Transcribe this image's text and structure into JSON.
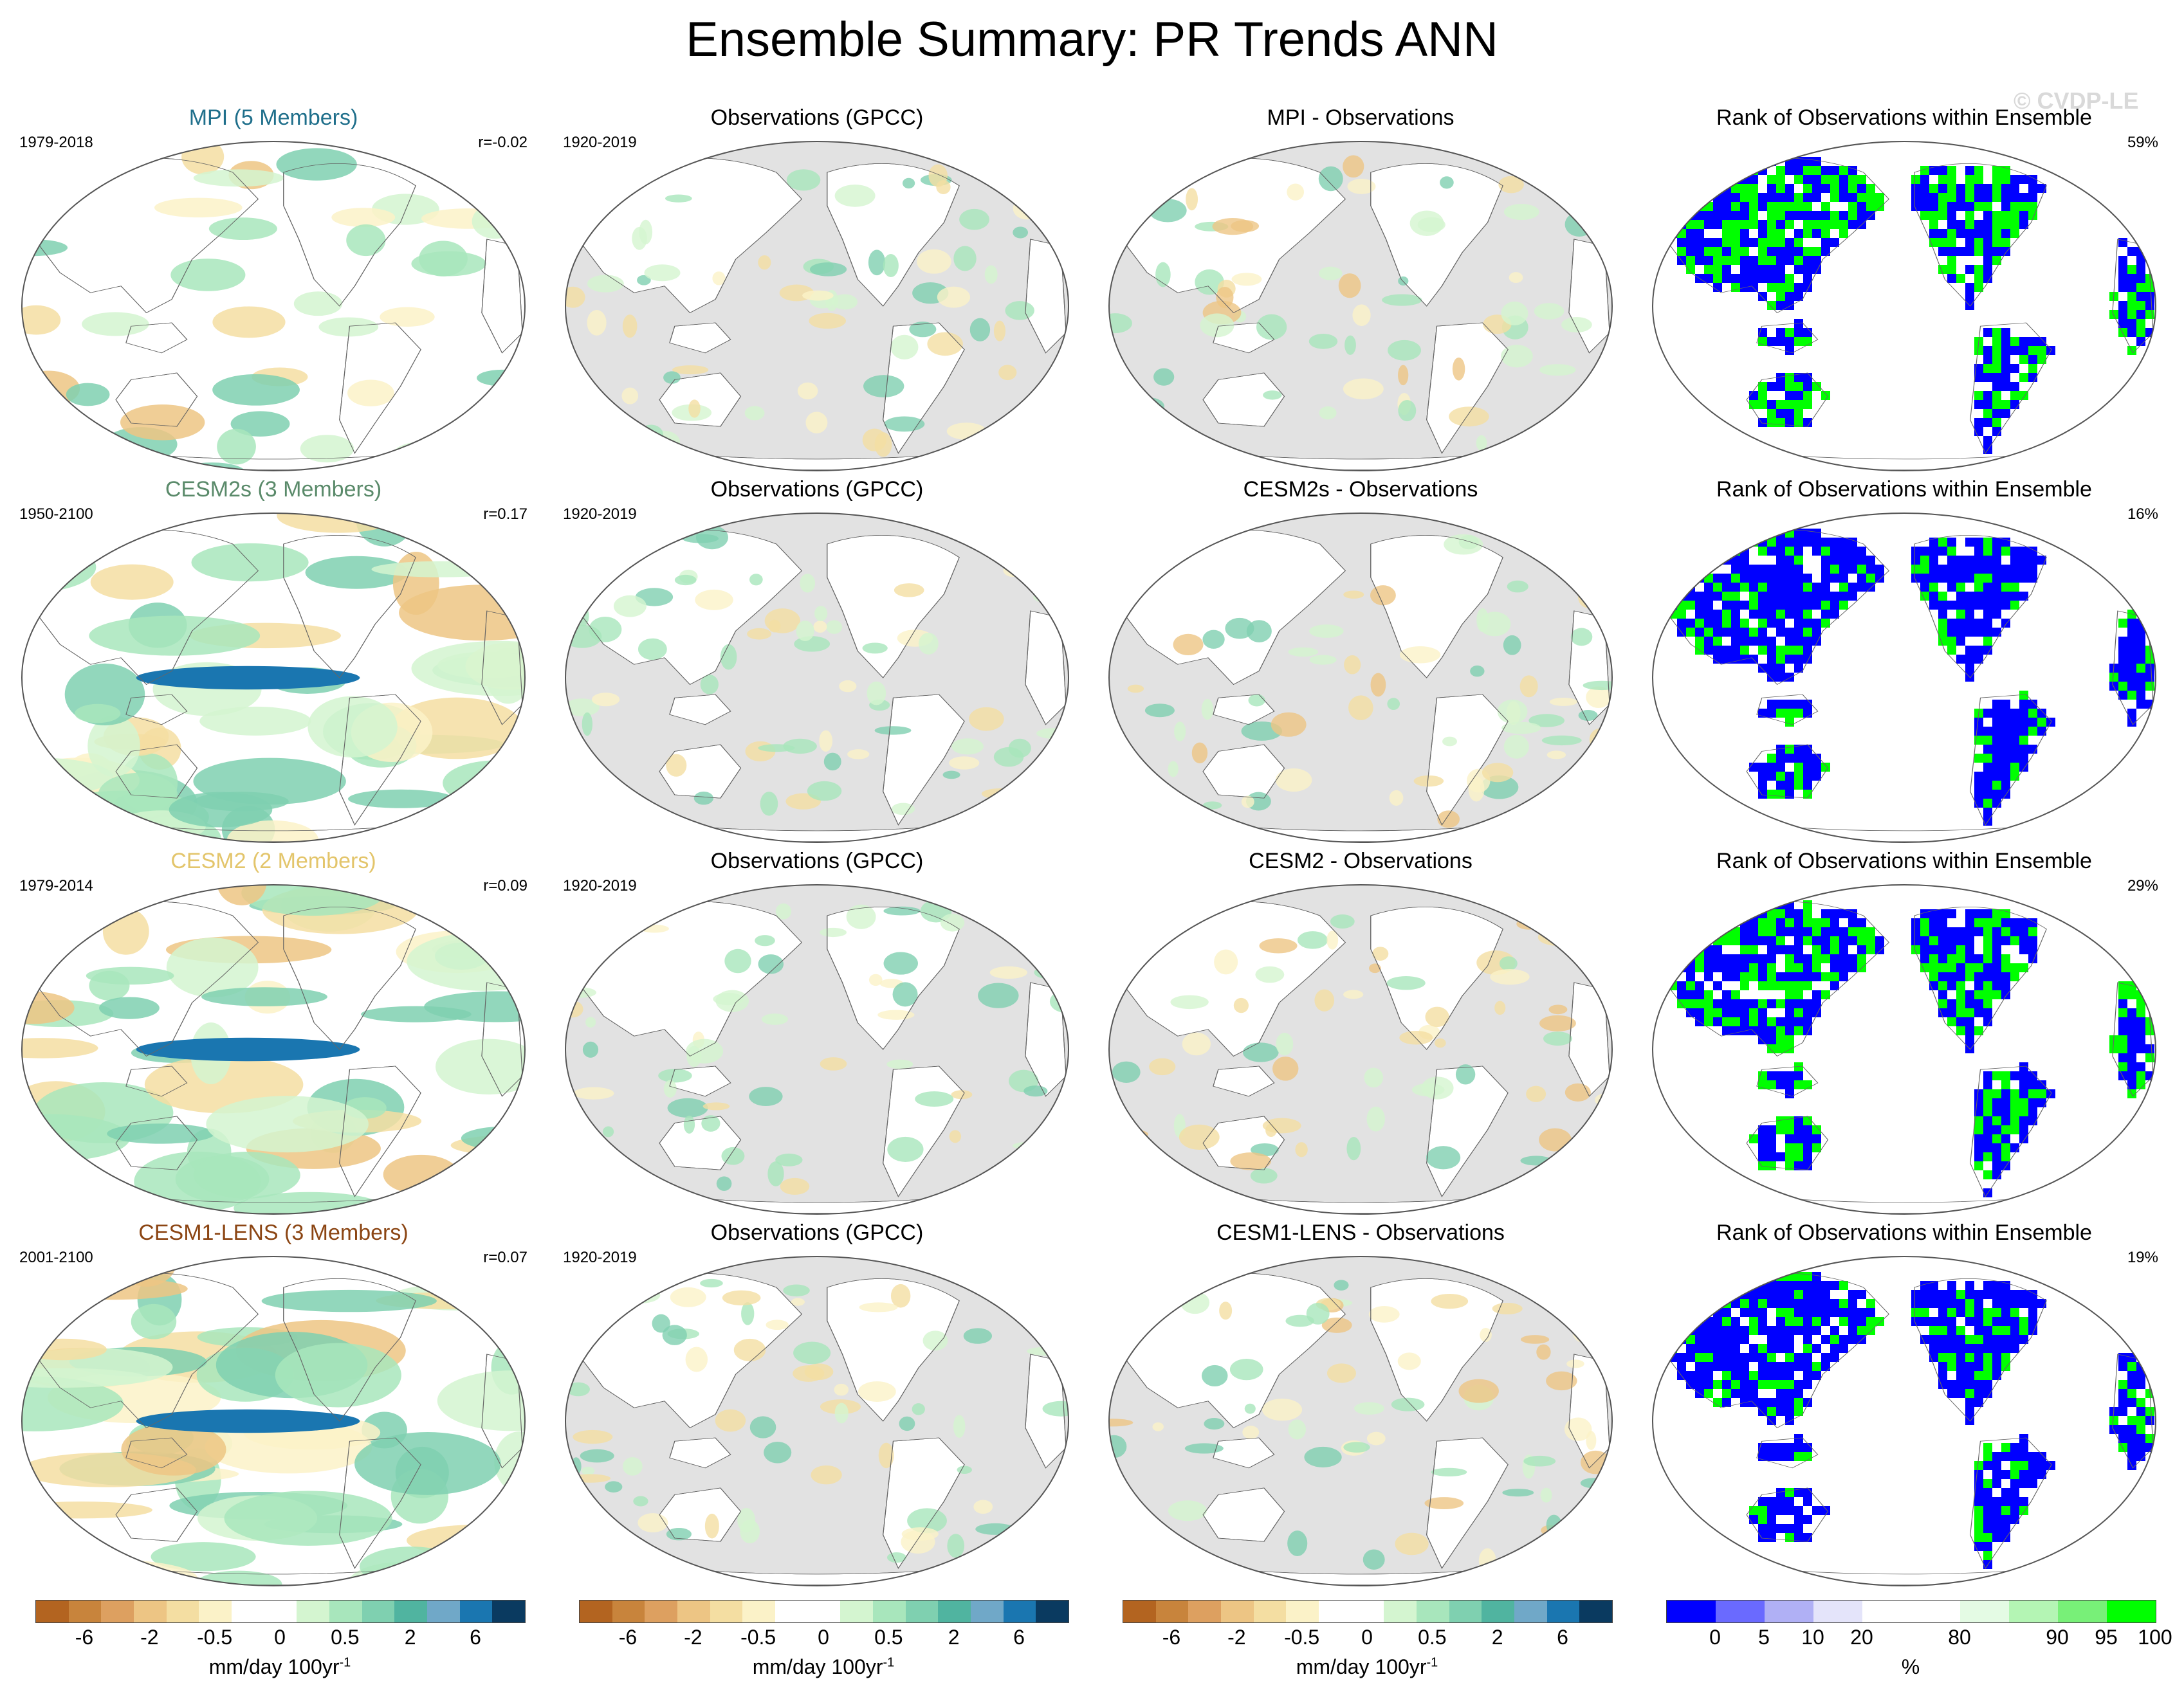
{
  "figure": {
    "title": "Ensemble Summary: PR Trends ANN",
    "watermark": "© CVDP-LE"
  },
  "rows": [
    {
      "model": {
        "title": "MPI (5 Members)",
        "title_color": "#1f6f8b",
        "period": "1979-2018",
        "corr": "r=-0.02"
      },
      "obs": {
        "title": "Observations (GPCC)",
        "period": "1920-2019"
      },
      "diff": {
        "title": "MPI - Observations"
      },
      "rank": {
        "title": "Rank of Observations within Ensemble",
        "percent": "59%"
      }
    },
    {
      "model": {
        "title": "CESM2s (3 Members)",
        "title_color": "#5a8a6a",
        "period": "1950-2100",
        "corr": "r=0.17"
      },
      "obs": {
        "title": "Observations (GPCC)",
        "period": "1920-2019"
      },
      "diff": {
        "title": "CESM2s - Observations"
      },
      "rank": {
        "title": "Rank of Observations within Ensemble",
        "percent": "16%"
      }
    },
    {
      "model": {
        "title": "CESM2 (2 Members)",
        "title_color": "#e3c56b",
        "period": "1979-2014",
        "corr": "r=0.09"
      },
      "obs": {
        "title": "Observations (GPCC)",
        "period": "1920-2019"
      },
      "diff": {
        "title": "CESM2 - Observations"
      },
      "rank": {
        "title": "Rank of Observations within Ensemble",
        "percent": "29%"
      }
    },
    {
      "model": {
        "title": "CESM1-LENS (3 Members)",
        "title_color": "#8b4513",
        "period": "2001-2100",
        "corr": "r=0.07"
      },
      "obs": {
        "title": "Observations (GPCC)",
        "period": "1920-2019"
      },
      "diff": {
        "title": "CESM1-LENS - Observations"
      },
      "rank": {
        "title": "Rank of Observations within Ensemble",
        "percent": "19%"
      }
    }
  ],
  "colorbars": {
    "trend": {
      "colors": [
        "#b36420",
        "#c8843c",
        "#dda060",
        "#edc584",
        "#f4dea2",
        "#fbf2c8",
        "#ffffff",
        "#ffffff",
        "#d4f5d0",
        "#a8e6bc",
        "#7fd0b0",
        "#50b4a0",
        "#70a8c8",
        "#1a76b0",
        "#0a3a60"
      ],
      "ticks": [
        "-6",
        "-2",
        "-0.5",
        "0",
        "0.5",
        "2",
        "6"
      ],
      "label": "mm/day 100yr",
      "label_sup": "-1"
    },
    "rank": {
      "colors": [
        "#0000ff",
        "#6a6aff",
        "#b0b0f5",
        "#e4e4fa",
        "#ffffff",
        "#ffffff",
        "#e4fbe4",
        "#b4f5b4",
        "#78f078",
        "#00ff00"
      ],
      "ticks": [
        "0",
        "5",
        "10",
        "20",
        "80",
        "90",
        "95",
        "100"
      ],
      "label": "%"
    }
  },
  "colors": {
    "land_gray": "#e2e2e2",
    "rank_blue": "#0000ff",
    "rank_green": "#00ff00"
  }
}
